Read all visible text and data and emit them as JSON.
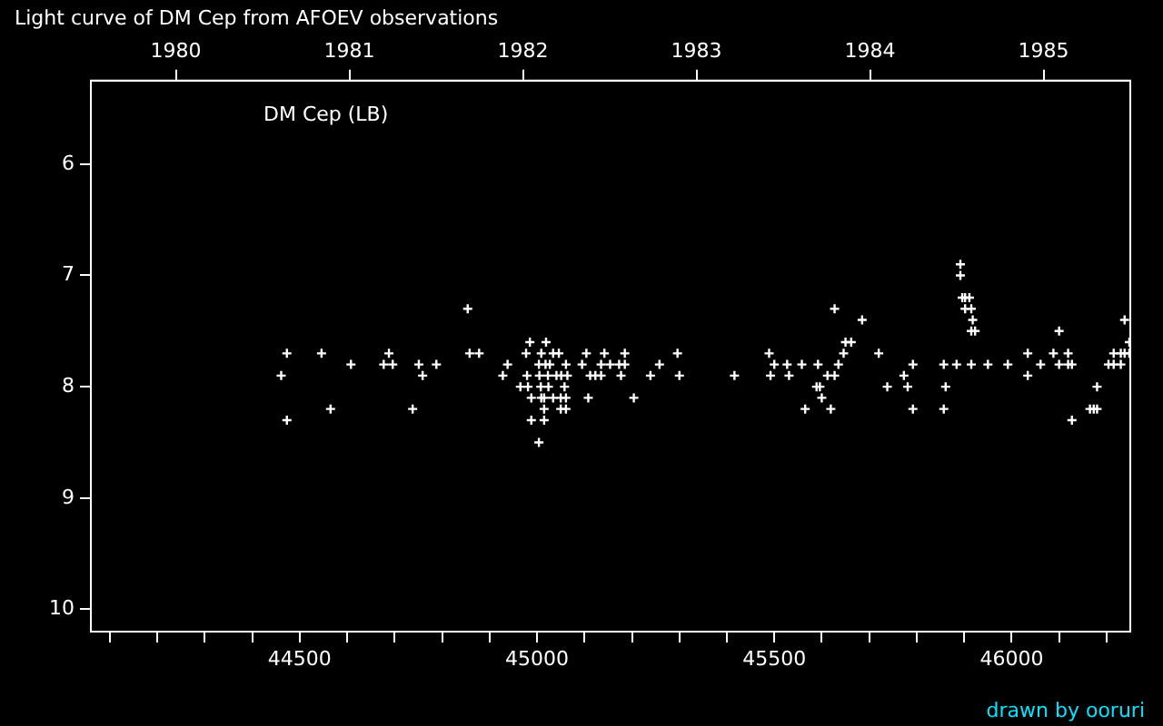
{
  "chart_data": {
    "type": "scatter",
    "title": "Light curve of DM Cep from AFOEV observations",
    "annotations": [
      "DM Cep (LB)",
      "drawn by ooruri"
    ],
    "xlim": [
      44060,
      46250
    ],
    "xticks": [
      {
        "value": 44100,
        "label": null
      },
      {
        "value": 44200,
        "label": null
      },
      {
        "value": 44300,
        "label": null
      },
      {
        "value": 44400,
        "label": null
      },
      44500,
      {
        "value": 44600,
        "label": null
      },
      {
        "value": 44700,
        "label": null
      },
      {
        "value": 44800,
        "label": null
      },
      {
        "value": 44900,
        "label": null
      },
      45000,
      {
        "value": 45100,
        "label": null
      },
      {
        "value": 45200,
        "label": null
      },
      {
        "value": 45300,
        "label": null
      },
      {
        "value": 45400,
        "label": null
      },
      45500,
      {
        "value": 45600,
        "label": null
      },
      {
        "value": 45700,
        "label": null
      },
      {
        "value": 45800,
        "label": null
      },
      {
        "value": 45900,
        "label": null
      },
      46000,
      {
        "value": 46100,
        "label": null
      },
      {
        "value": 46200,
        "label": null
      }
    ],
    "x2lim": [
      1979.51,
      1985.5
    ],
    "x2ticks": [
      1980,
      1981,
      1982,
      1983,
      1984,
      1985
    ],
    "ylim": [
      10.2,
      5.25
    ],
    "yticks": [
      6,
      7,
      8,
      9,
      10
    ],
    "grid": false,
    "legend": false,
    "marker": "cross",
    "series": [
      {
        "color": "#ffffff",
        "x": [
          44461,
          44473,
          44473,
          44546,
          44565,
          44608,
          44677,
          44688,
          44696,
          44738,
          44751,
          44759,
          44788,
          44854,
          44858,
          44878,
          44928,
          44938,
          44965,
          44977,
          44979,
          44981,
          44985,
          44988,
          44988,
          45004,
          45004,
          45005,
          45008,
          45009,
          45009,
          45015,
          45015,
          45015,
          45018,
          45019,
          45023,
          45024,
          45027,
          45034,
          45034,
          45041,
          45046,
          45050,
          45050,
          45051,
          45058,
          45061,
          45061,
          45061,
          45064,
          45095,
          45104,
          45108,
          45112,
          45123,
          45135,
          45135,
          45142,
          45154,
          45173,
          45177,
          45185,
          45185,
          45204,
          45239,
          45258,
          45296,
          45300,
          45416,
          45489,
          45492,
          45500,
          45527,
          45531,
          45558,
          45565,
          45589,
          45592,
          45596,
          45600,
          45612,
          45619,
          45627,
          45627,
          45635,
          45646,
          45650,
          45662,
          45685,
          45720,
          45738,
          45773,
          45781,
          45792,
          45792,
          45857,
          45857,
          45861,
          45884,
          45892,
          45892,
          45896,
          45902,
          45902,
          45911,
          45915,
          45915,
          45915,
          45918,
          45923,
          45950,
          45992,
          46034,
          46034,
          46061,
          46088,
          46100,
          46100,
          46119,
          46119,
          46127,
          46127,
          46165,
          46173,
          46180,
          46180,
          46204,
          46215,
          46215,
          46230,
          46230,
          46238,
          46238,
          46248,
          46248
        ],
        "values": [
          7.9,
          7.7,
          8.3,
          7.7,
          8.2,
          7.8,
          7.8,
          7.7,
          7.8,
          8.2,
          7.8,
          7.9,
          7.8,
          7.3,
          7.7,
          7.7,
          7.9,
          7.8,
          8.0,
          7.7,
          7.9,
          8.0,
          7.6,
          8.1,
          8.3,
          7.8,
          8.5,
          7.9,
          8.0,
          7.7,
          8.1,
          8.1,
          8.2,
          8.3,
          7.8,
          7.6,
          7.9,
          8.0,
          7.8,
          7.7,
          8.1,
          7.9,
          7.7,
          8.1,
          8.2,
          7.9,
          8.0,
          7.8,
          8.1,
          8.2,
          7.9,
          7.8,
          7.7,
          8.1,
          7.9,
          7.9,
          7.8,
          7.9,
          7.7,
          7.8,
          7.8,
          7.9,
          7.7,
          7.8,
          8.1,
          7.9,
          7.8,
          7.7,
          7.9,
          7.9,
          7.7,
          7.9,
          7.8,
          7.8,
          7.9,
          7.8,
          8.2,
          8.0,
          7.8,
          8.0,
          8.1,
          7.9,
          8.2,
          7.3,
          7.9,
          7.8,
          7.7,
          7.6,
          7.6,
          7.4,
          7.7,
          8.0,
          7.9,
          8.0,
          7.8,
          8.2,
          7.8,
          8.2,
          8.0,
          7.8,
          6.9,
          7.0,
          7.2,
          7.2,
          7.3,
          7.2,
          7.3,
          7.5,
          7.8,
          7.4,
          7.5,
          7.8,
          7.8,
          7.7,
          7.9,
          7.8,
          7.7,
          7.5,
          7.8,
          7.7,
          7.8,
          7.8,
          8.3,
          8.2,
          8.2,
          8.0,
          8.2,
          7.8,
          7.7,
          7.8,
          7.7,
          7.8,
          7.4,
          7.7,
          7.6,
          7.7
        ]
      }
    ]
  }
}
